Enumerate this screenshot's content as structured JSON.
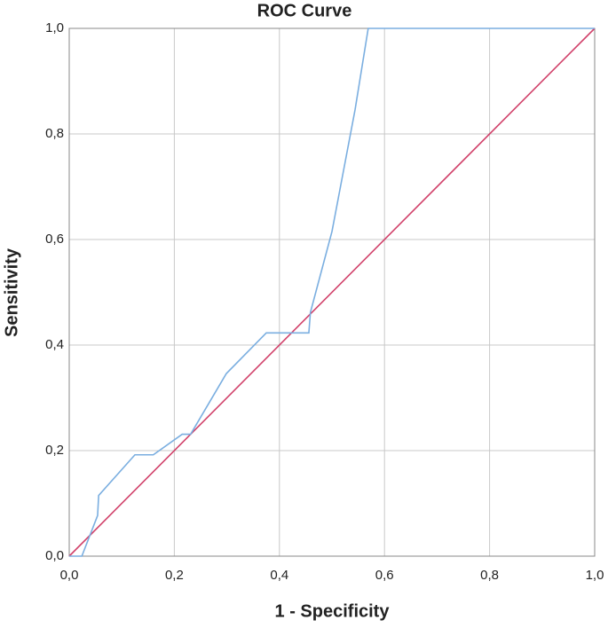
{
  "chart_data": {
    "type": "line",
    "title": "ROC Curve",
    "x_label": "1 - Specificity",
    "y_label": "Sensitivity",
    "xlim": [
      0,
      1
    ],
    "ylim": [
      0,
      1
    ],
    "xticks": [
      {
        "value": 0,
        "label": "0,0"
      },
      {
        "value": 0.2,
        "label": "0,2"
      },
      {
        "value": 0.4,
        "label": "0,4"
      },
      {
        "value": 0.6,
        "label": "0,6"
      },
      {
        "value": 0.8,
        "label": "0,8"
      },
      {
        "value": 1,
        "label": "1,0"
      }
    ],
    "yticks": [
      {
        "value": 0,
        "label": "0,0"
      },
      {
        "value": 0.2,
        "label": "0,2"
      },
      {
        "value": 0.4,
        "label": "0,4"
      },
      {
        "value": 0.6,
        "label": "0,6"
      },
      {
        "value": 0.8,
        "label": "0,8"
      },
      {
        "value": 1,
        "label": "1,0"
      }
    ],
    "grid": true,
    "series": [
      {
        "color": "#7aaee0",
        "x": [
          0,
          0.024,
          0.054,
          0.056,
          0.125,
          0.16,
          0.215,
          0.231,
          0.299,
          0.375,
          0.456,
          0.459,
          0.5,
          0.544,
          0.569,
          1
        ],
        "values": [
          0,
          0,
          0.077,
          0.115,
          0.192,
          0.192,
          0.231,
          0.231,
          0.346,
          0.423,
          0.423,
          0.462,
          0.615,
          0.846,
          1,
          1
        ]
      },
      {
        "color": "#d1416a",
        "x": [
          0,
          1
        ],
        "values": [
          0,
          1
        ]
      }
    ]
  }
}
